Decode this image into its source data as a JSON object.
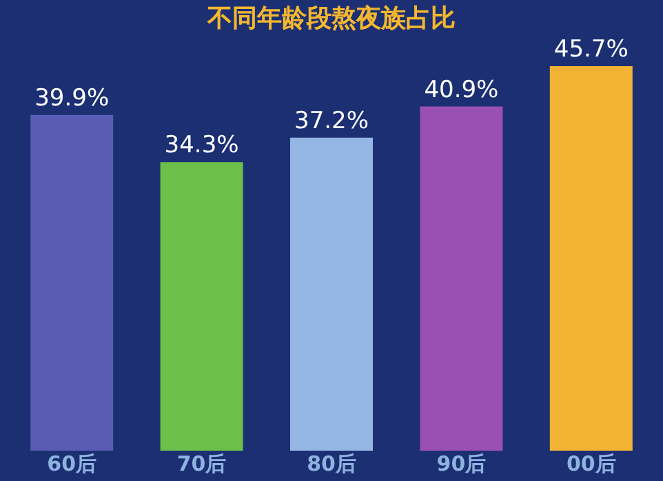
{
  "chart_data": {
    "type": "bar",
    "title": "不同年龄段熬夜族占比",
    "categories": [
      "60后",
      "70后",
      "80后",
      "90后",
      "00后"
    ],
    "values": [
      39.9,
      34.3,
      37.2,
      40.9,
      45.7
    ],
    "colors": [
      "#5a5cb4",
      "#6cc04a",
      "#93b6e4",
      "#9a4fb4",
      "#f2b233"
    ],
    "value_labels": [
      "39.9%",
      "34.3%",
      "37.2%",
      "40.9%",
      "45.7%"
    ]
  }
}
